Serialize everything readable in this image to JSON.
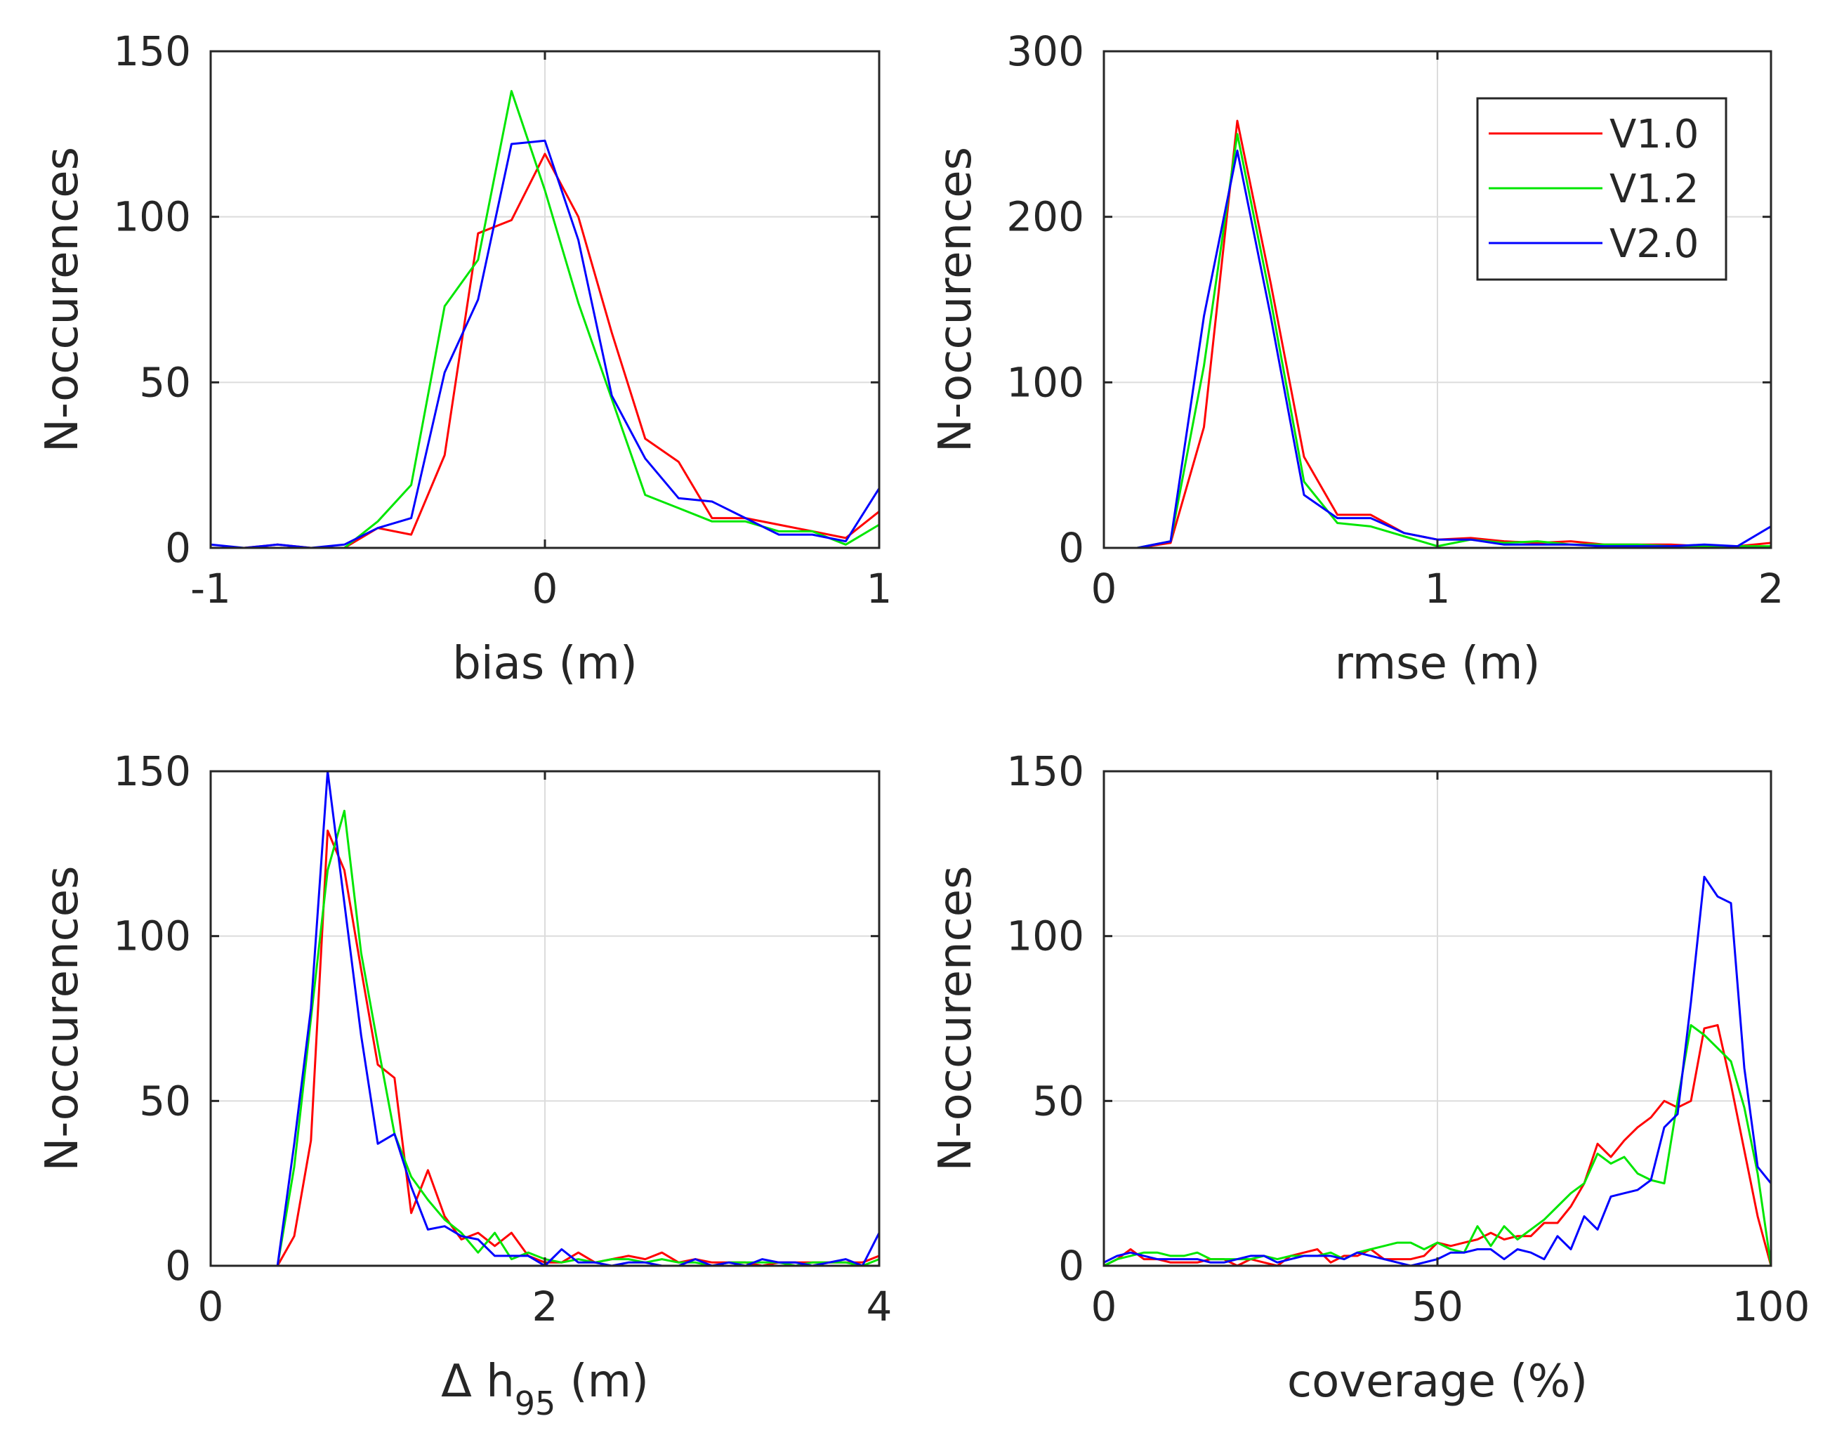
{
  "colors": {
    "V1.0": "#ff0000",
    "V1.2": "#00e600",
    "V2.0": "#0000ff"
  },
  "legend": [
    "V1.0",
    "V1.2",
    "V2.0"
  ],
  "chart_data": [
    {
      "type": "line",
      "title": "",
      "xlabel": "bias (m)",
      "ylabel": "N-occurences",
      "xlim": [
        -1,
        1
      ],
      "ylim": [
        0,
        150
      ],
      "xticks": [
        -1,
        0,
        1
      ],
      "xtick_labels": [
        "-1",
        "0",
        "1"
      ],
      "yticks": [
        0,
        50,
        100,
        150
      ],
      "ytick_labels": [
        "0",
        "50",
        "100",
        "150"
      ],
      "grid": true,
      "series": [
        {
          "name": "V1.0",
          "x": [
            -1,
            -0.9,
            -0.8,
            -0.7,
            -0.6,
            -0.5,
            -0.4,
            -0.3,
            -0.2,
            -0.1,
            0,
            0.1,
            0.2,
            0.3,
            0.4,
            0.5,
            0.6,
            0.7,
            0.8,
            0.9,
            1.0
          ],
          "y": [
            0,
            0,
            1,
            0,
            0,
            6,
            4,
            28,
            95,
            99,
            119,
            100,
            65,
            33,
            26,
            9,
            9,
            7,
            5,
            3,
            11
          ]
        },
        {
          "name": "V1.2",
          "x": [
            -1,
            -0.9,
            -0.8,
            -0.7,
            -0.6,
            -0.5,
            -0.4,
            -0.3,
            -0.2,
            -0.1,
            0,
            0.1,
            0.2,
            0.3,
            0.4,
            0.5,
            0.6,
            0.7,
            0.8,
            0.9,
            1.0
          ],
          "y": [
            0,
            0,
            0,
            0,
            0,
            8,
            19,
            73,
            87,
            138,
            108,
            74,
            45,
            16,
            12,
            8,
            8,
            5,
            5,
            1,
            7
          ]
        },
        {
          "name": "V2.0",
          "x": [
            -1,
            -0.9,
            -0.8,
            -0.7,
            -0.6,
            -0.5,
            -0.4,
            -0.3,
            -0.2,
            -0.1,
            0,
            0.1,
            0.2,
            0.3,
            0.4,
            0.5,
            0.6,
            0.7,
            0.8,
            0.9,
            1.0
          ],
          "y": [
            1,
            0,
            1,
            0,
            1,
            6,
            9,
            53,
            75,
            122,
            123,
            93,
            46,
            27,
            15,
            14,
            9,
            4,
            4,
            2,
            18
          ]
        }
      ]
    },
    {
      "type": "line",
      "title": "",
      "xlabel": "rmse (m)",
      "ylabel": "N-occurences",
      "xlim": [
        0,
        2
      ],
      "ylim": [
        0,
        300
      ],
      "xticks": [
        0,
        1,
        2
      ],
      "xtick_labels": [
        "0",
        "1",
        "2"
      ],
      "yticks": [
        0,
        100,
        200,
        300
      ],
      "ytick_labels": [
        "0",
        "100",
        "200",
        "300"
      ],
      "grid": true,
      "legend_position": "top-right",
      "series": [
        {
          "name": "V1.0",
          "x": [
            0,
            0.1,
            0.2,
            0.3,
            0.4,
            0.5,
            0.6,
            0.7,
            0.8,
            0.9,
            1.0,
            1.1,
            1.2,
            1.3,
            1.4,
            1.5,
            1.6,
            1.7,
            1.8,
            1.9,
            2.0
          ],
          "y": [
            0,
            0,
            3,
            73,
            258,
            160,
            55,
            20,
            20,
            9,
            5,
            6,
            4,
            3,
            4,
            2,
            2,
            2,
            1,
            1,
            3
          ]
        },
        {
          "name": "V1.2",
          "x": [
            0,
            0.1,
            0.2,
            0.3,
            0.4,
            0.5,
            0.6,
            0.7,
            0.8,
            0.9,
            1.0,
            1.1,
            1.2,
            1.3,
            1.4,
            1.5,
            1.6,
            1.7,
            1.8,
            1.9,
            2.0
          ],
          "y": [
            0,
            0,
            4,
            110,
            250,
            150,
            40,
            15,
            13,
            7,
            1,
            5,
            3,
            4,
            2,
            2,
            2,
            1,
            1,
            1,
            1
          ]
        },
        {
          "name": "V2.0",
          "x": [
            0,
            0.1,
            0.2,
            0.3,
            0.4,
            0.5,
            0.6,
            0.7,
            0.8,
            0.9,
            1.0,
            1.1,
            1.2,
            1.3,
            1.4,
            1.5,
            1.6,
            1.7,
            1.8,
            1.9,
            2.0
          ],
          "y": [
            0,
            0,
            4,
            140,
            240,
            140,
            32,
            18,
            18,
            9,
            5,
            5,
            2,
            2,
            2,
            1,
            1,
            1,
            2,
            1,
            13
          ]
        }
      ]
    },
    {
      "type": "line",
      "title": "",
      "xlabel": "Δ h",
      "xlabel_sub": "95",
      "xlabel_suffix": " (m)",
      "ylabel": "N-occurences",
      "xlim": [
        0,
        4
      ],
      "ylim": [
        0,
        150
      ],
      "xticks": [
        0,
        2,
        4
      ],
      "xtick_labels": [
        "0",
        "2",
        "4"
      ],
      "yticks": [
        0,
        50,
        100,
        150
      ],
      "ytick_labels": [
        "0",
        "50",
        "100",
        "150"
      ],
      "grid": true,
      "series": [
        {
          "name": "V1.0",
          "x": [
            0,
            0.1,
            0.2,
            0.3,
            0.4,
            0.5,
            0.6,
            0.7,
            0.8,
            0.9,
            1.0,
            1.1,
            1.2,
            1.3,
            1.4,
            1.5,
            1.6,
            1.7,
            1.8,
            1.9,
            2.0,
            2.1,
            2.2,
            2.3,
            2.4,
            2.5,
            2.6,
            2.7,
            2.8,
            2.9,
            3.0,
            3.1,
            3.2,
            3.3,
            3.4,
            3.5,
            3.6,
            3.7,
            3.8,
            3.9,
            4.0
          ],
          "y": [
            0,
            0,
            0,
            0,
            0,
            9,
            38,
            132,
            120,
            90,
            61,
            57,
            16,
            29,
            15,
            8,
            10,
            6,
            10,
            3,
            1,
            1,
            4,
            1,
            2,
            3,
            2,
            4,
            1,
            2,
            1,
            1,
            1,
            0,
            1,
            1,
            1,
            1,
            1,
            1,
            3
          ]
        },
        {
          "name": "V1.2",
          "x": [
            0,
            0.1,
            0.2,
            0.3,
            0.4,
            0.5,
            0.6,
            0.7,
            0.8,
            0.9,
            1.0,
            1.1,
            1.2,
            1.3,
            1.4,
            1.5,
            1.6,
            1.7,
            1.8,
            1.9,
            2.0,
            2.1,
            2.2,
            2.3,
            2.4,
            2.5,
            2.6,
            2.7,
            2.8,
            2.9,
            3.0,
            3.1,
            3.2,
            3.3,
            3.4,
            3.5,
            3.6,
            3.7,
            3.8,
            3.9,
            4.0
          ],
          "y": [
            0,
            0,
            0,
            0,
            0,
            30,
            75,
            120,
            138,
            95,
            67,
            40,
            27,
            20,
            14,
            10,
            4,
            10,
            2,
            4,
            2,
            1,
            2,
            1,
            2,
            2,
            1,
            2,
            1,
            1,
            0,
            1,
            1,
            1,
            1,
            0,
            1,
            1,
            1,
            0,
            2
          ]
        },
        {
          "name": "V2.0",
          "x": [
            0,
            0.1,
            0.2,
            0.3,
            0.4,
            0.5,
            0.6,
            0.7,
            0.8,
            0.9,
            1.0,
            1.1,
            1.2,
            1.3,
            1.4,
            1.5,
            1.6,
            1.7,
            1.8,
            1.9,
            2.0,
            2.1,
            2.2,
            2.3,
            2.4,
            2.5,
            2.6,
            2.7,
            2.8,
            2.9,
            3.0,
            3.1,
            3.2,
            3.3,
            3.4,
            3.5,
            3.6,
            3.7,
            3.8,
            3.9,
            4.0
          ],
          "y": [
            0,
            0,
            0,
            0,
            0,
            37,
            78,
            150,
            110,
            70,
            37,
            40,
            24,
            11,
            12,
            9,
            8,
            3,
            3,
            3,
            0,
            5,
            1,
            1,
            0,
            1,
            1,
            0,
            0,
            2,
            0,
            1,
            0,
            2,
            1,
            1,
            0,
            1,
            2,
            0,
            10
          ]
        }
      ]
    },
    {
      "type": "line",
      "title": "",
      "xlabel": "coverage (%)",
      "ylabel": "N-occurences",
      "xlim": [
        0,
        100
      ],
      "ylim": [
        0,
        150
      ],
      "xticks": [
        0,
        50,
        100
      ],
      "xtick_labels": [
        "0",
        "50",
        "100"
      ],
      "yticks": [
        0,
        50,
        100,
        150
      ],
      "ytick_labels": [
        "0",
        "50",
        "100",
        "150"
      ],
      "grid": true,
      "series": [
        {
          "name": "V1.0",
          "x": [
            0,
            2,
            4,
            6,
            8,
            10,
            12,
            14,
            16,
            18,
            20,
            22,
            24,
            26,
            28,
            30,
            32,
            34,
            36,
            38,
            40,
            42,
            44,
            46,
            48,
            50,
            52,
            54,
            56,
            58,
            60,
            62,
            64,
            66,
            68,
            70,
            72,
            74,
            76,
            78,
            80,
            82,
            84,
            86,
            88,
            90,
            92,
            94,
            96,
            98,
            100
          ],
          "y": [
            0,
            2,
            5,
            2,
            2,
            1,
            1,
            1,
            2,
            2,
            0,
            2,
            1,
            0,
            3,
            4,
            5,
            1,
            3,
            3,
            5,
            2,
            2,
            2,
            3,
            7,
            6,
            7,
            8,
            10,
            8,
            9,
            9,
            13,
            13,
            18,
            25,
            37,
            33,
            38,
            42,
            45,
            50,
            48,
            50,
            72,
            73,
            55,
            35,
            15,
            0
          ]
        },
        {
          "name": "V1.2",
          "x": [
            0,
            2,
            4,
            6,
            8,
            10,
            12,
            14,
            16,
            18,
            20,
            22,
            24,
            26,
            28,
            30,
            32,
            34,
            36,
            38,
            40,
            42,
            44,
            46,
            48,
            50,
            52,
            54,
            56,
            58,
            60,
            62,
            64,
            66,
            68,
            70,
            72,
            74,
            76,
            78,
            80,
            82,
            84,
            86,
            88,
            90,
            92,
            94,
            96,
            98,
            100
          ],
          "y": [
            0,
            2,
            3,
            4,
            4,
            3,
            3,
            4,
            2,
            2,
            2,
            2,
            3,
            2,
            3,
            3,
            3,
            4,
            2,
            4,
            5,
            6,
            7,
            7,
            5,
            7,
            5,
            4,
            12,
            6,
            12,
            8,
            11,
            14,
            18,
            22,
            25,
            34,
            31,
            33,
            28,
            26,
            25,
            50,
            73,
            70,
            66,
            62,
            48,
            28,
            0
          ]
        },
        {
          "name": "V2.0",
          "x": [
            0,
            2,
            4,
            6,
            8,
            10,
            12,
            14,
            16,
            18,
            20,
            22,
            24,
            26,
            28,
            30,
            32,
            34,
            36,
            38,
            40,
            42,
            44,
            46,
            48,
            50,
            52,
            54,
            56,
            58,
            60,
            62,
            64,
            66,
            68,
            70,
            72,
            74,
            76,
            78,
            80,
            82,
            84,
            86,
            88,
            90,
            92,
            94,
            96,
            98,
            100
          ],
          "y": [
            1,
            3,
            4,
            3,
            2,
            2,
            2,
            2,
            1,
            1,
            2,
            3,
            3,
            1,
            2,
            3,
            3,
            3,
            2,
            4,
            3,
            2,
            1,
            0,
            1,
            2,
            4,
            4,
            5,
            5,
            2,
            5,
            4,
            2,
            9,
            5,
            15,
            11,
            21,
            22,
            23,
            26,
            42,
            46,
            80,
            118,
            112,
            110,
            60,
            30,
            25
          ]
        }
      ]
    }
  ]
}
